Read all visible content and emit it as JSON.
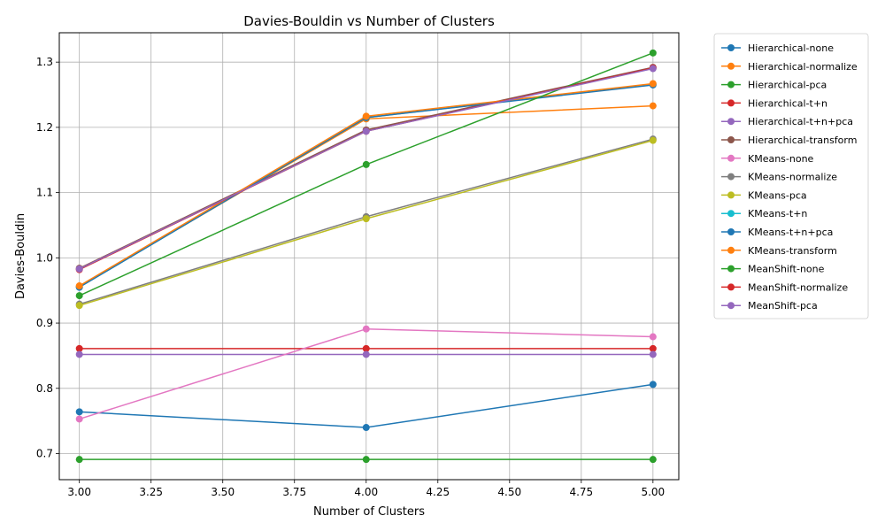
{
  "chart_data": {
    "type": "line",
    "title": "Davies-Bouldin vs Number of Clusters",
    "xlabel": "Number of Clusters",
    "ylabel": "Davies-Bouldin",
    "xlim": [
      2.93,
      5.09
    ],
    "ylim": [
      0.66,
      1.345
    ],
    "xticks": [
      3.0,
      3.25,
      3.5,
      3.75,
      4.0,
      4.25,
      4.5,
      4.75,
      5.0
    ],
    "xtick_labels": [
      "3.00",
      "3.25",
      "3.50",
      "3.75",
      "4.00",
      "4.25",
      "4.50",
      "4.75",
      "5.00"
    ],
    "yticks": [
      0.7,
      0.8,
      0.9,
      1.0,
      1.1,
      1.2,
      1.3
    ],
    "ytick_labels": [
      "0.7",
      "0.8",
      "0.9",
      "1.0",
      "1.1",
      "1.2",
      "1.3"
    ],
    "grid": true,
    "legend_position": "outside-upper-right",
    "x": [
      3,
      4,
      5
    ],
    "series": [
      {
        "name": "Hierarchical-none",
        "color": "#1f77b4",
        "values": [
          0.764,
          0.74,
          0.806
        ]
      },
      {
        "name": "Hierarchical-normalize",
        "color": "#ff7f0e",
        "values": [
          0.956,
          1.213,
          1.233
        ]
      },
      {
        "name": "Hierarchical-pca",
        "color": "#2ca02c",
        "values": [
          0.691,
          0.691,
          0.691
        ]
      },
      {
        "name": "Hierarchical-t+n",
        "color": "#d62728",
        "values": [
          0.861,
          0.861,
          0.861
        ]
      },
      {
        "name": "Hierarchical-t+n+pca",
        "color": "#9467bd",
        "values": [
          0.852,
          0.852,
          0.852
        ]
      },
      {
        "name": "Hierarchical-transform",
        "color": "#8c564b",
        "values": [
          0.984,
          1.196,
          1.292
        ]
      },
      {
        "name": "KMeans-none",
        "color": "#e377c2",
        "values": [
          0.753,
          0.891,
          0.879
        ]
      },
      {
        "name": "KMeans-normalize",
        "color": "#7f7f7f",
        "values": [
          0.929,
          1.063,
          1.182
        ]
      },
      {
        "name": "KMeans-pca",
        "color": "#bcbd22",
        "values": [
          0.927,
          1.06,
          1.18
        ]
      },
      {
        "name": "KMeans-t+n",
        "color": "#17becf",
        "values": [
          0.955,
          1.215,
          1.266
        ]
      },
      {
        "name": "KMeans-t+n+pca",
        "color": "#1f77b4",
        "values": [
          0.955,
          1.215,
          1.265
        ]
      },
      {
        "name": "KMeans-transform",
        "color": "#ff7f0e",
        "values": [
          0.957,
          1.217,
          1.267
        ]
      },
      {
        "name": "MeanShift-none",
        "color": "#2ca02c",
        "values": [
          0.942,
          1.143,
          1.314
        ]
      },
      {
        "name": "MeanShift-normalize",
        "color": "#d62728",
        "values": [
          0.982,
          1.194,
          1.291
        ]
      },
      {
        "name": "MeanShift-pca",
        "color": "#9467bd",
        "values": [
          0.983,
          1.194,
          1.29
        ]
      }
    ]
  }
}
